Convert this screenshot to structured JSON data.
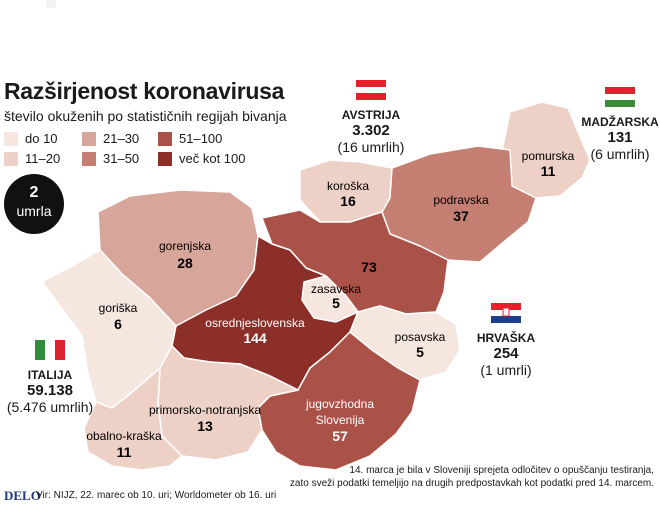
{
  "title": "Razširjenost koronavirusa",
  "subtitle": "število okuženih po statističnih regijah bivanja",
  "legend": [
    {
      "label": "do 10",
      "color": "#f6e6e0"
    },
    {
      "label": "11–20",
      "color": "#edd0c6"
    },
    {
      "label": "21–30",
      "color": "#d7a59a"
    },
    {
      "label": "31–50",
      "color": "#c47e72"
    },
    {
      "label": "51–100",
      "color": "#ab5248"
    },
    {
      "label": "več kot 100",
      "color": "#8c2f29"
    }
  ],
  "deaths": {
    "number": "2",
    "label": "umrla"
  },
  "regions": [
    {
      "name": "pomurska",
      "value": "11",
      "color": "#edd0c6"
    },
    {
      "name": "koroška",
      "value": "16",
      "color": "#edd0c6"
    },
    {
      "name": "podravska",
      "value": "37",
      "color": "#c47e72"
    },
    {
      "name": "gorenjska",
      "value": "28",
      "color": "#d7a59a"
    },
    {
      "name": "",
      "value": "73",
      "color": "#ab5248"
    },
    {
      "name": "zasavska",
      "value": "5",
      "color": "#f6e6e0"
    },
    {
      "name": "goriška",
      "value": "6",
      "color": "#f6e6e0"
    },
    {
      "name": "osrednjeslovenska",
      "value": "144",
      "color": "#8c2f29"
    },
    {
      "name": "posavska",
      "value": "5",
      "color": "#f6e6e0"
    },
    {
      "name": "jugovzhodna Slovenija",
      "value": "57",
      "color": "#ab5248"
    },
    {
      "name": "primorsko-notranjska",
      "value": "13",
      "color": "#edd0c6"
    },
    {
      "name": "obalno-kraška",
      "value": "11",
      "color": "#edd0c6"
    }
  ],
  "countries": {
    "avstrija": {
      "name": "AVSTRIJA",
      "cases": "3.302",
      "deaths": "(16 umrlih)"
    },
    "madzarska": {
      "name": "MADŽARSKA",
      "cases": "131",
      "deaths": "(6 umrlih)"
    },
    "hrvaska": {
      "name": "HRVAŠKA",
      "cases": "254",
      "deaths": "(1 umrli)"
    },
    "italija": {
      "name": "ITALIJA",
      "cases": "59.138",
      "deaths": "(5.476 umrlih)"
    }
  },
  "footer": {
    "logo": "DELO",
    "source": "Vir: NIJZ, 22. marec ob 10. uri; Worldometer ob 16. uri",
    "note_line1": "14. marca je bila v Sloveniji sprejeta odločitev o opuščanju testiranja,",
    "note_line2": "zato sveži podatki temeljijo na drugih predpostavkah kot podatki pred 14. marcem."
  }
}
